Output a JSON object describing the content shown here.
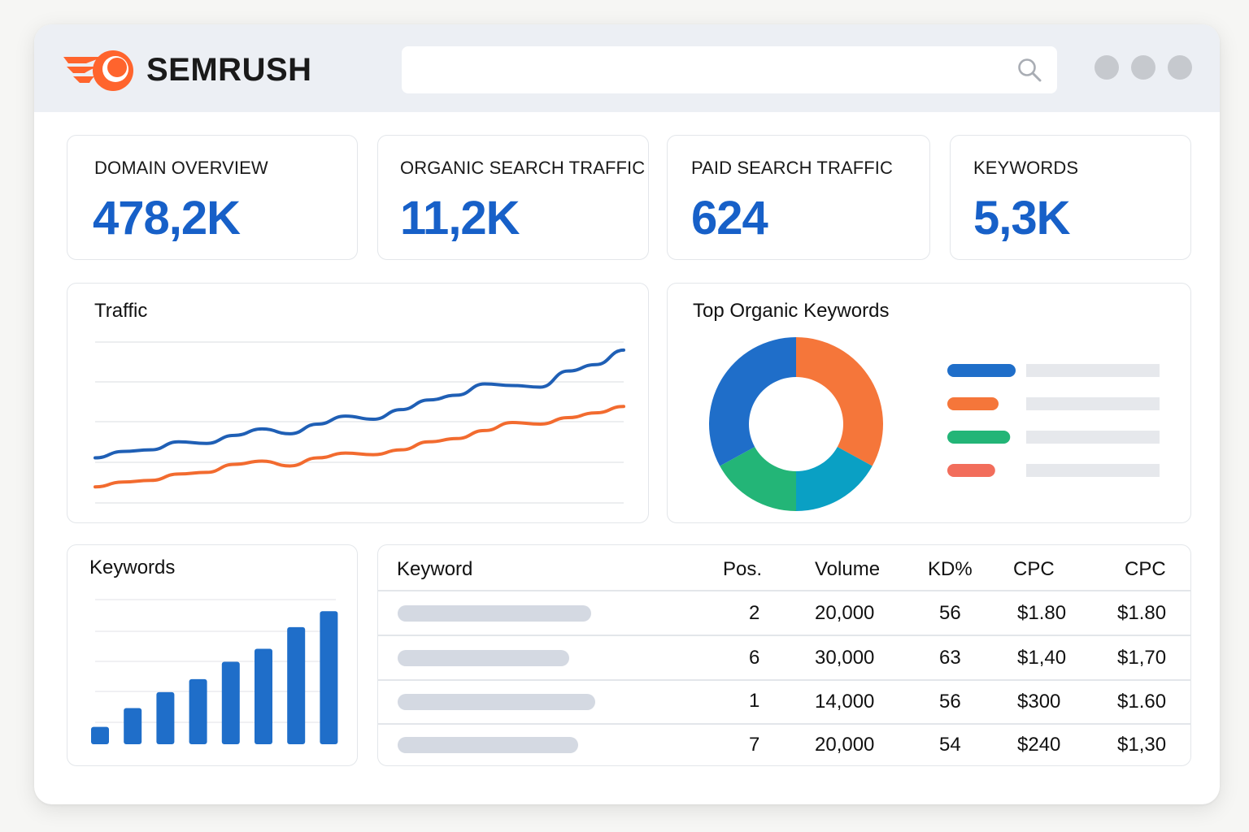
{
  "brand": {
    "name": "SEMRUSH",
    "accent": "#ff642d"
  },
  "search": {
    "placeholder": "",
    "value": "",
    "icon": "search-icon"
  },
  "window_controls": [
    "dot",
    "dot",
    "dot"
  ],
  "stats": [
    {
      "label": "DOMAIN OVERVIEW",
      "value": "478,2K"
    },
    {
      "label": "ORGANIC SEARCH TRAFFIC",
      "value": "11,2K"
    },
    {
      "label": "PAID SEARCH TRAFFIC",
      "value": "624"
    },
    {
      "label": "KEYWORDS",
      "value": "5,3K"
    }
  ],
  "traffic": {
    "title": "Traffic"
  },
  "top_keywords": {
    "title": "Top Organic Keywords"
  },
  "keywords_panel": {
    "title": "Keywords"
  },
  "table": {
    "headers": [
      "Keyword",
      "Pos.",
      "Volume",
      "KD%",
      "CPC",
      "CPC"
    ],
    "rows": [
      {
        "pos": "2",
        "volume": "20,000",
        "kd": "56",
        "cpc1": "$1.80",
        "cpc2": "$1.80"
      },
      {
        "pos": "6",
        "volume": "30,000",
        "kd": "63",
        "cpc1": "$1,40",
        "cpc2": "$1,70"
      },
      {
        "pos": "1",
        "volume": "14,000",
        "kd": "56",
        "cpc1": "$300",
        "cpc2": "$1.60"
      },
      {
        "pos": "7",
        "volume": "20,000",
        "kd": "54",
        "cpc1": "$240",
        "cpc2": "$1,30"
      }
    ]
  },
  "chart_data": [
    {
      "type": "line",
      "title": "Traffic",
      "x": [
        1,
        2,
        3,
        4,
        5,
        6,
        7,
        8,
        9,
        10,
        11,
        12,
        13,
        14,
        15,
        16,
        17,
        18,
        19,
        20
      ],
      "ylim": [
        0,
        100
      ],
      "grid": true,
      "series": [
        {
          "color": "#1f5fb5",
          "values": [
            28,
            32,
            33,
            38,
            37,
            42,
            46,
            43,
            49,
            54,
            52,
            58,
            64,
            67,
            74,
            73,
            72,
            82,
            86,
            95
          ]
        },
        {
          "color": "#f26b2f",
          "values": [
            10,
            13,
            14,
            18,
            19,
            24,
            26,
            23,
            28,
            31,
            30,
            33,
            38,
            40,
            45,
            50,
            49,
            53,
            56,
            60
          ]
        }
      ]
    },
    {
      "type": "pie",
      "title": "Top Organic Keywords",
      "values": [
        33,
        17,
        17,
        33
      ],
      "colors": [
        "#f5763a",
        "#0aa0c4",
        "#23b577",
        "#1f6ec9"
      ],
      "legend_colors": [
        "#1f6ec9",
        "#f5763a",
        "#23b577",
        "#f26d5b"
      ],
      "legend_fill": [
        1.0,
        0.75,
        0.92,
        0.7
      ]
    },
    {
      "type": "bar",
      "title": "Keywords",
      "values": [
        12,
        25,
        36,
        45,
        57,
        66,
        81,
        92
      ],
      "ylim": [
        0,
        100
      ],
      "grid": true,
      "color": "#1f6ec9"
    }
  ],
  "keyword_placeholders": [
    1.0,
    0.88,
    1.02,
    0.93
  ]
}
